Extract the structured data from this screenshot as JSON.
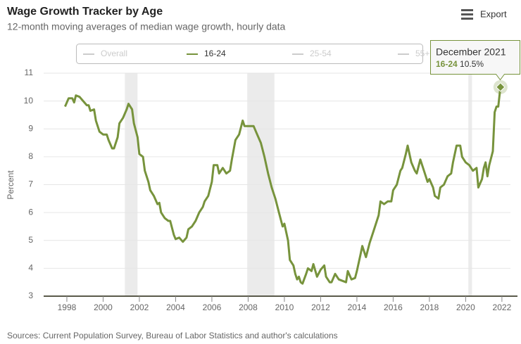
{
  "chart_data": {
    "type": "line",
    "title": "Wage Growth Tracker by Age",
    "subtitle": "12-month moving averages of median wage growth, hourly data",
    "y_label": "Percent",
    "source": "Sources: Current Population Survey, Bureau of Labor Statistics and author's calculations",
    "export_label": "Export",
    "legend_hidden": [
      "Overall",
      "25-54",
      "55+"
    ],
    "recession_bands": [
      [
        2001.2,
        2001.9
      ],
      [
        2007.95,
        2009.45
      ],
      [
        2020.15,
        2020.35
      ]
    ],
    "band_color": "#ebebeb",
    "x": [
      1997.9,
      1998.1,
      1998.3,
      1998.4,
      1998.5,
      1998.7,
      1998.9,
      1999.1,
      1999.2,
      1999.3,
      1999.5,
      1999.6,
      1999.8,
      2000.0,
      2000.2,
      2000.3,
      2000.5,
      2000.6,
      2000.8,
      2000.9,
      2001.1,
      2001.3,
      2001.4,
      2001.6,
      2001.7,
      2001.9,
      2002.0,
      2002.2,
      2002.3,
      2002.5,
      2002.6,
      2002.8,
      2003.0,
      2003.1,
      2003.2,
      2003.4,
      2003.6,
      2003.7,
      2003.9,
      2004.0,
      2004.2,
      2004.4,
      2004.6,
      2004.7,
      2004.9,
      2005.1,
      2005.3,
      2005.5,
      2005.6,
      2005.8,
      2006.0,
      2006.1,
      2006.3,
      2006.4,
      2006.6,
      2006.8,
      2007.0,
      2007.1,
      2007.3,
      2007.5,
      2007.7,
      2007.8,
      2008.0,
      2008.3,
      2008.5,
      2008.7,
      2008.9,
      2009.1,
      2009.3,
      2009.5,
      2009.7,
      2009.9,
      2010.0,
      2010.2,
      2010.3,
      2010.5,
      2010.6,
      2010.7,
      2010.8,
      2010.9,
      2011.0,
      2011.2,
      2011.3,
      2011.5,
      2011.6,
      2011.8,
      2012.0,
      2012.2,
      2012.3,
      2012.5,
      2012.6,
      2012.8,
      2013.0,
      2013.2,
      2013.4,
      2013.5,
      2013.7,
      2013.9,
      2014.0,
      2014.2,
      2014.3,
      2014.5,
      2014.7,
      2014.9,
      2015.0,
      2015.2,
      2015.3,
      2015.5,
      2015.7,
      2015.9,
      2016.0,
      2016.2,
      2016.4,
      2016.5,
      2016.7,
      2016.8,
      2017.0,
      2017.2,
      2017.3,
      2017.5,
      2017.7,
      2017.9,
      2018.0,
      2018.2,
      2018.3,
      2018.5,
      2018.6,
      2018.8,
      2019.0,
      2019.2,
      2019.3,
      2019.5,
      2019.7,
      2019.8,
      2020.0,
      2020.2,
      2020.4,
      2020.6,
      2020.7,
      2020.9,
      2021.0,
      2021.1,
      2021.2,
      2021.3,
      2021.5,
      2021.6,
      2021.7,
      2021.8,
      2021.92
    ],
    "series": [
      {
        "name": "16-24",
        "color": "#77933c",
        "values": [
          9.8,
          10.1,
          10.1,
          9.95,
          10.2,
          10.15,
          10.0,
          9.85,
          9.85,
          9.65,
          9.7,
          9.3,
          8.9,
          8.8,
          8.8,
          8.6,
          8.3,
          8.3,
          8.7,
          9.2,
          9.4,
          9.7,
          9.9,
          9.7,
          9.2,
          8.7,
          8.1,
          8.0,
          7.5,
          7.1,
          6.8,
          6.6,
          6.3,
          6.35,
          6.0,
          5.8,
          5.7,
          5.7,
          5.2,
          5.05,
          5.1,
          4.95,
          5.1,
          5.4,
          5.5,
          5.7,
          6.0,
          6.2,
          6.4,
          6.6,
          7.1,
          7.7,
          7.7,
          7.4,
          7.6,
          7.4,
          7.5,
          7.9,
          8.6,
          8.8,
          9.3,
          9.1,
          9.1,
          9.1,
          8.8,
          8.5,
          8.0,
          7.4,
          6.9,
          6.5,
          6.0,
          5.5,
          5.6,
          5.0,
          4.3,
          4.1,
          3.8,
          3.6,
          3.7,
          3.5,
          3.45,
          3.8,
          4.0,
          3.9,
          4.15,
          3.7,
          3.95,
          4.1,
          3.7,
          3.5,
          3.5,
          3.8,
          3.6,
          3.55,
          3.5,
          3.9,
          3.6,
          3.65,
          3.9,
          4.5,
          4.8,
          4.4,
          4.9,
          5.3,
          5.5,
          5.9,
          6.4,
          6.3,
          6.4,
          6.4,
          6.8,
          7.0,
          7.5,
          7.6,
          8.1,
          8.4,
          7.8,
          7.5,
          7.4,
          7.9,
          7.5,
          7.1,
          7.2,
          6.9,
          6.6,
          6.5,
          6.9,
          7.0,
          7.3,
          7.4,
          7.8,
          8.4,
          8.4,
          8.0,
          7.8,
          7.7,
          7.5,
          7.6,
          6.9,
          7.2,
          7.6,
          7.8,
          7.3,
          7.7,
          8.2,
          9.6,
          9.8,
          9.8,
          10.5
        ]
      }
    ],
    "tooltip": {
      "title": "December 2021",
      "series": "16-24",
      "x": 2021.92,
      "value": 10.5,
      "label": "10.5%"
    },
    "xlim": [
      1996.72,
      2022.47
    ],
    "xticks": [
      1998,
      2000,
      2002,
      2004,
      2006,
      2008,
      2010,
      2012,
      2014,
      2016,
      2018,
      2020,
      2022
    ],
    "ylim": [
      3,
      11
    ],
    "yticks": [
      3,
      4,
      5,
      6,
      7,
      8,
      9,
      10,
      11
    ],
    "grid": true
  }
}
